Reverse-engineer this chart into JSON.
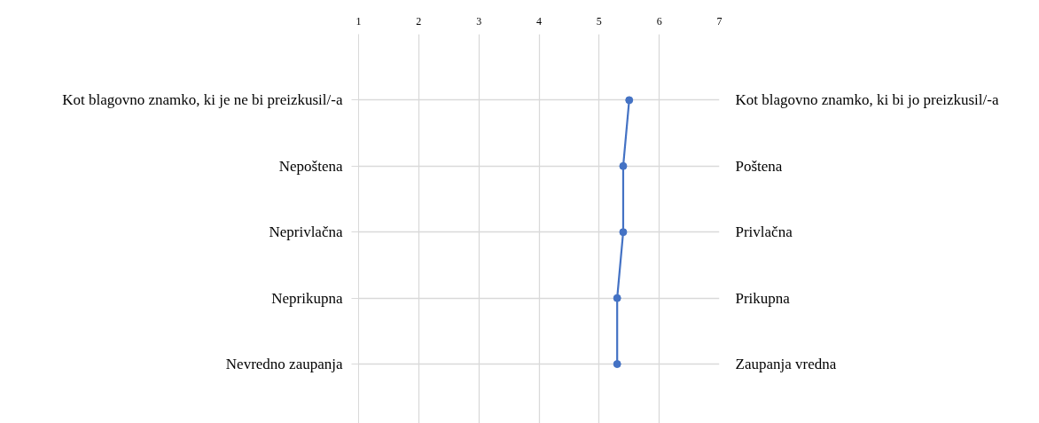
{
  "chart_data": {
    "type": "line",
    "orientation": "horizontal",
    "categories": [
      "Kot blagovno znamko, ki je ne bi preizkusil/-a",
      "Nepoštena",
      "Neprivlačna",
      "Neprikupna",
      "Nevredno zaupanja"
    ],
    "y2_categories": [
      "Kot blagovno znamko, ki bi jo preizkusil/-a",
      "Poštena",
      "Privlačna",
      "Prikupna",
      "Zaupanja vredna"
    ],
    "values": [
      5.5,
      5.4,
      5.4,
      5.3,
      5.3
    ],
    "color": "#4472c4",
    "marker": "circle",
    "line_style": "solid",
    "xlim": [
      1,
      7
    ],
    "xticks": [
      1,
      2,
      3,
      4,
      5,
      6,
      7
    ],
    "grid": true
  }
}
